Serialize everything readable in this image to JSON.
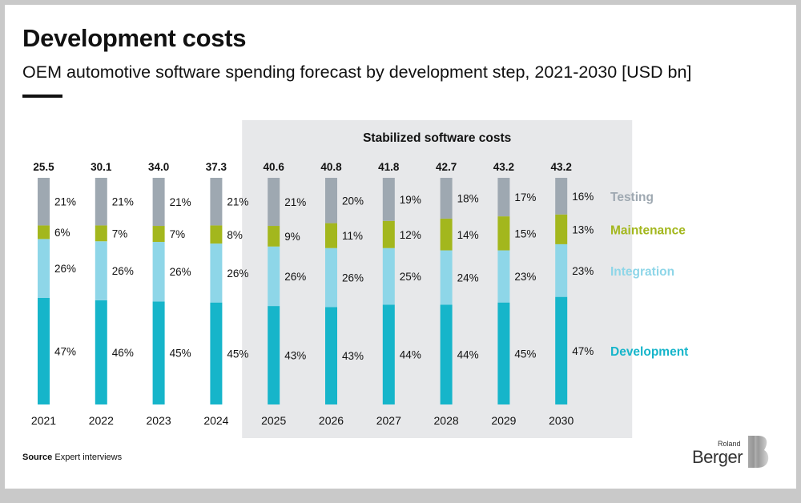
{
  "title": "Development costs",
  "subtitle": "OEM automotive software spending forecast by development step, 2021-2030 [USD bn]",
  "source_label": "Source",
  "source_text": "Expert interviews",
  "logo": {
    "top": "Roland",
    "bottom": "Berger"
  },
  "highlight_label": "Stabilized software costs",
  "colors": {
    "Development": "#16b5ca",
    "Integration": "#8ed6e8",
    "Maintenance": "#a3b71d",
    "Testing": "#9ea8b1",
    "highlight_bg": "#e7e8ea"
  },
  "chart_data": {
    "type": "bar",
    "stacked": true,
    "normalized": true,
    "categories": [
      "2021",
      "2022",
      "2023",
      "2024",
      "2025",
      "2026",
      "2027",
      "2028",
      "2029",
      "2030"
    ],
    "totals": [
      "25.5",
      "30.1",
      "34.0",
      "37.3",
      "40.6",
      "40.8",
      "41.8",
      "42.7",
      "43.2",
      "43.2"
    ],
    "highlight_range": [
      "2025",
      "2030"
    ],
    "series": [
      {
        "name": "Development",
        "values": [
          47,
          46,
          45,
          45,
          43,
          43,
          44,
          44,
          45,
          47
        ]
      },
      {
        "name": "Integration",
        "values": [
          26,
          26,
          26,
          26,
          26,
          26,
          25,
          24,
          23,
          23
        ]
      },
      {
        "name": "Maintenance",
        "values": [
          6,
          7,
          7,
          8,
          9,
          11,
          12,
          14,
          15,
          13
        ]
      },
      {
        "name": "Testing",
        "values": [
          21,
          21,
          21,
          21,
          21,
          20,
          19,
          18,
          17,
          16
        ]
      }
    ],
    "value_suffix": "%",
    "legend_position": "right"
  }
}
